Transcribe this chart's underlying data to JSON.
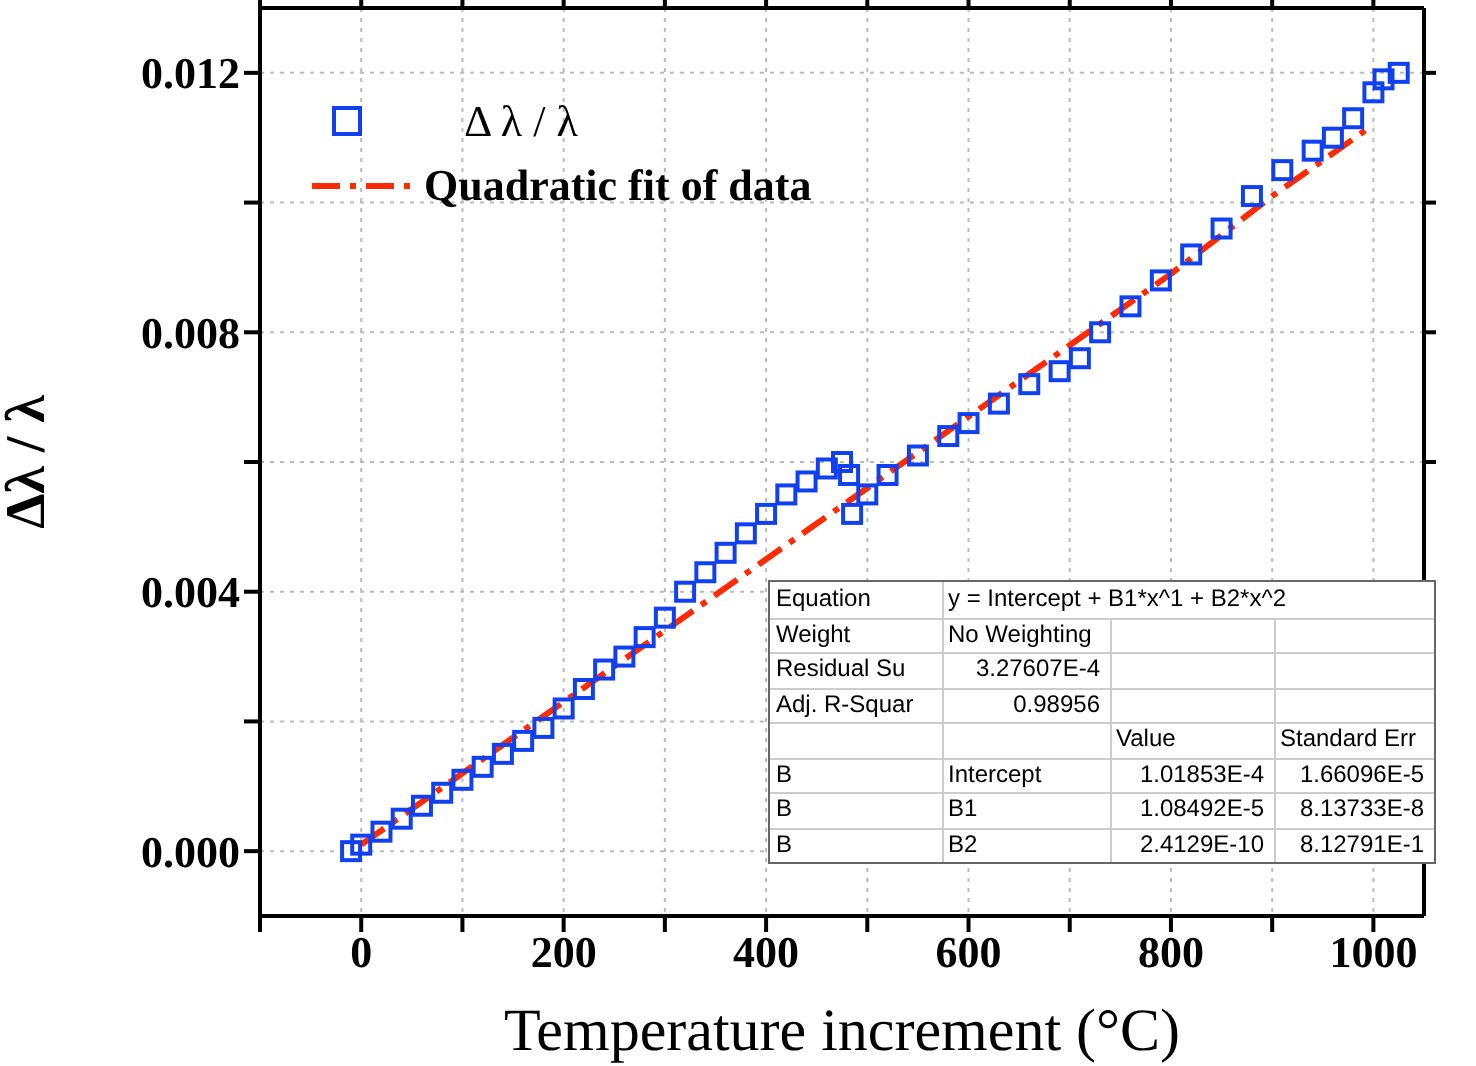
{
  "chart_data": {
    "type": "scatter",
    "xlabel": "Temperature increment (°C)",
    "ylabel": "Δλ / λ",
    "xlim": [
      -100,
      1050
    ],
    "xticks": [
      {
        "value": -100,
        "label": null
      },
      0,
      {
        "value": 100,
        "label": null
      },
      200,
      {
        "value": 300,
        "label": null
      },
      400,
      {
        "value": 500,
        "label": null
      },
      600,
      {
        "value": 700,
        "label": null
      },
      800,
      {
        "value": 900,
        "label": null
      },
      1000
    ],
    "ylim": [
      -0.001,
      0.013
    ],
    "yticks": [
      {
        "value": 0,
        "label": "0.000"
      },
      {
        "value": 0.002,
        "label": null
      },
      {
        "value": 0.004,
        "label": "0.004"
      },
      {
        "value": 0.006,
        "label": null
      },
      {
        "value": 0.008,
        "label": "0.008"
      },
      {
        "value": 0.01,
        "label": null
      },
      {
        "value": 0.012,
        "label": "0.012"
      }
    ],
    "grid": true,
    "legend": "top left",
    "series": [
      {
        "name": "Δ λ / λ",
        "marker": "square",
        "color": "#1040f0",
        "x": [
          -10,
          0,
          20,
          40,
          60,
          80,
          100,
          120,
          140,
          160,
          180,
          200,
          220,
          240,
          260,
          280,
          300,
          320,
          340,
          360,
          380,
          400,
          420,
          440,
          460,
          475,
          482,
          485,
          500,
          520,
          550,
          580,
          600,
          630,
          660,
          690,
          710,
          730,
          760,
          790,
          820,
          850,
          880,
          910,
          940,
          960,
          980,
          1000,
          1010,
          1025
        ],
        "values": [
          0.0,
          0.0001,
          0.0003,
          0.0005,
          0.0007,
          0.0009,
          0.0011,
          0.0013,
          0.0015,
          0.0017,
          0.0019,
          0.0022,
          0.0025,
          0.0028,
          0.003,
          0.0033,
          0.0036,
          0.004,
          0.0043,
          0.0046,
          0.0049,
          0.0052,
          0.0055,
          0.0057,
          0.0059,
          0.006,
          0.0058,
          0.0052,
          0.0055,
          0.0058,
          0.0061,
          0.0064,
          0.0066,
          0.0069,
          0.0072,
          0.0074,
          0.0076,
          0.008,
          0.0084,
          0.0088,
          0.0092,
          0.0096,
          0.0101,
          0.0105,
          0.0108,
          0.011,
          0.0113,
          0.0117,
          0.0119,
          0.012
        ]
      },
      {
        "name": "Quadratic fit of data",
        "type": "line",
        "line_style": "dashed",
        "marker": "none",
        "color": "#ff2a00",
        "x": [
          0,
          100,
          200,
          300,
          400,
          500,
          600,
          700,
          800,
          900,
          1000
        ],
        "values": [
          0.0001,
          0.0012,
          0.0023,
          0.0034,
          0.0045,
          0.0056,
          0.0067,
          0.0078,
          0.0089,
          0.0101,
          0.0112
        ]
      }
    ],
    "annotations": [
      "Equation",
      "y = Intercept + B1*x^1 + B2*x^2",
      "Weight",
      "No Weighting",
      "Residual Su",
      "3.27607E-4",
      "Adj. R-Squar",
      "0.98956",
      "Value",
      "Standard Err",
      "B",
      "Intercept",
      "1.01853E-4",
      "1.66096E-5",
      "B",
      "B1",
      "1.08492E-5",
      "8.13733E-8",
      "B",
      "B2",
      "2.4129E-10",
      "8.12791E-1"
    ]
  }
}
